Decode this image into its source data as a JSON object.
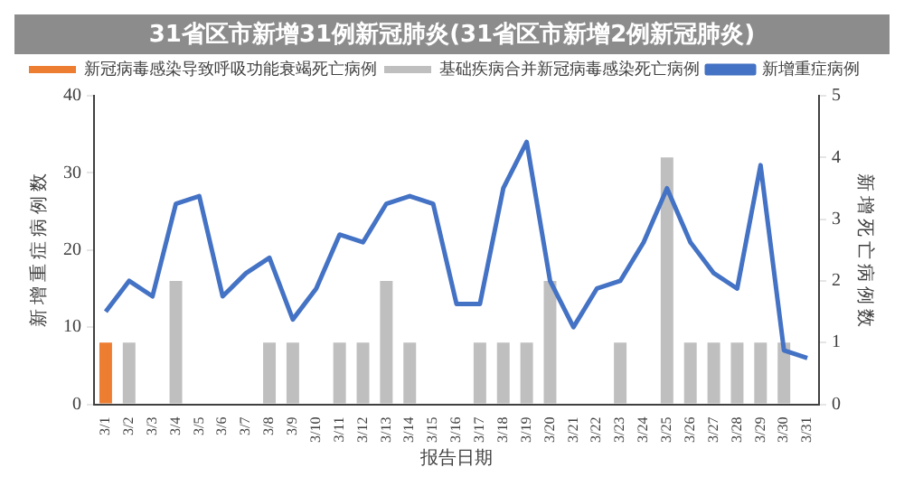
{
  "chart_data": {
    "type": "bar",
    "title": "31省区市新增31例新冠肺炎(31省区市新增2例新冠肺炎)",
    "xlabel": "报告日期",
    "ylabel": "新增重症病例数",
    "y2label": "新增死亡病例数",
    "categories": [
      "3/1",
      "3/2",
      "3/3",
      "3/4",
      "3/5",
      "3/6",
      "3/7",
      "3/8",
      "3/9",
      "3/10",
      "3/11",
      "3/12",
      "3/13",
      "3/14",
      "3/15",
      "3/16",
      "3/17",
      "3/18",
      "3/19",
      "3/20",
      "3/21",
      "3/22",
      "3/23",
      "3/24",
      "3/25",
      "3/26",
      "3/27",
      "3/28",
      "3/29",
      "3/30",
      "3/31"
    ],
    "stacked": true,
    "legend": "top left",
    "grid": false,
    "series": [
      {
        "name": "新冠病毒感染导致呼吸功能衰竭死亡病例",
        "axis": "y2",
        "color": "#ed7d31",
        "values": [
          1,
          null,
          null,
          null,
          null,
          null,
          null,
          null,
          null,
          null,
          null,
          null,
          null,
          null,
          null,
          null,
          null,
          null,
          null,
          null,
          null,
          null,
          null,
          null,
          null,
          null,
          null,
          null,
          null,
          null,
          null
        ]
      },
      {
        "name": "基础疾病合并新冠病毒感染死亡病例",
        "axis": "y2",
        "color": "#bfbfbf",
        "values": [
          null,
          1,
          null,
          2,
          null,
          null,
          null,
          1,
          1,
          null,
          1,
          1,
          2,
          1,
          null,
          null,
          1,
          1,
          1,
          2,
          null,
          null,
          1,
          null,
          4,
          1,
          1,
          1,
          1,
          1,
          null
        ]
      },
      {
        "name": "新增重症病例",
        "type": "line",
        "axis": "y",
        "color": "#4472c4",
        "marker": "none",
        "values": [
          12,
          16,
          14,
          26,
          27,
          14,
          17,
          19,
          11,
          15,
          22,
          21,
          26,
          27,
          26,
          13,
          13,
          28,
          34,
          16,
          10,
          15,
          16,
          21,
          28,
          21,
          17,
          15,
          31,
          7,
          6
        ]
      }
    ],
    "ylim": [
      0,
      40
    ],
    "yticks": [
      0,
      10,
      20,
      30,
      40
    ],
    "y2lim": [
      0,
      5
    ],
    "y2ticks": [
      0,
      1,
      2,
      3,
      4,
      5
    ]
  }
}
